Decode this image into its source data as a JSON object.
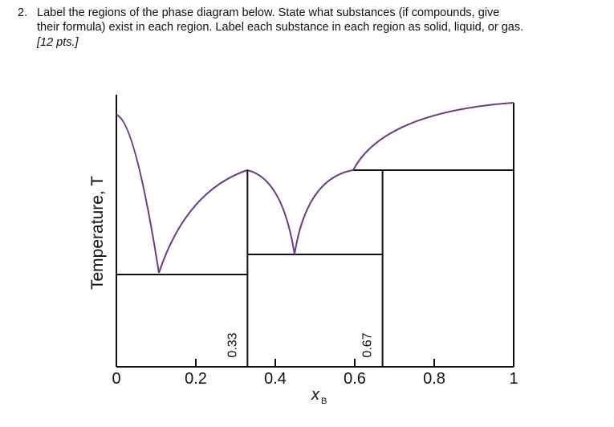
{
  "question": {
    "number": "2.",
    "lines": [
      "Label the regions of the phase diagram below. State what substances (if compounds, give",
      "their formula) exist in each region. Label each substance in each region as solid, liquid, or gas."
    ],
    "points": "[12 pts.]"
  },
  "figure": {
    "y_label": "Temperature, T",
    "x_label": "x",
    "x_label_sub": "B",
    "xlim": [
      0,
      1
    ],
    "xticks": [
      0,
      0.2,
      0.4,
      0.6,
      0.8,
      1
    ],
    "compositions": [
      0.33,
      0.67
    ]
  }
}
